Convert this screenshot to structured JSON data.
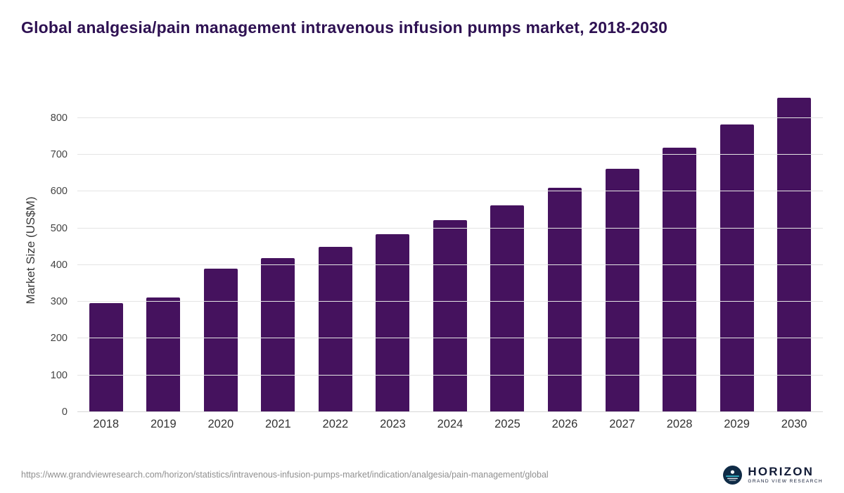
{
  "header": {
    "title": "Global analgesia/pain management intravenous infusion pumps market, 2018-2030"
  },
  "chart_data": {
    "type": "bar",
    "title": "Global analgesia/pain management intravenous infusion pumps market, 2018-2030",
    "categories": [
      "2018",
      "2019",
      "2020",
      "2021",
      "2022",
      "2023",
      "2024",
      "2025",
      "2026",
      "2027",
      "2028",
      "2029",
      "2030"
    ],
    "values": [
      297,
      312,
      390,
      419,
      450,
      484,
      522,
      563,
      610,
      662,
      719,
      782,
      856
    ],
    "xlabel": "",
    "ylabel": "Market Size (US$M)",
    "ylim": [
      0,
      880
    ],
    "yticks": [
      0,
      100,
      200,
      300,
      400,
      500,
      600,
      700,
      800
    ],
    "grid": "horizontal",
    "legend": "none",
    "bar_color": "#45125e"
  },
  "footer": {
    "source_url": "https://www.grandviewresearch.com/horizon/statistics/intravenous-infusion-pumps-market/indication/analgesia/pain-management/global",
    "logo": {
      "brand": "HORIZON",
      "tagline": "GRAND VIEW RESEARCH",
      "icon": "horizon-circle-icon",
      "icon_color": "#0f2b46",
      "accent_color": "#35b6c9"
    }
  }
}
